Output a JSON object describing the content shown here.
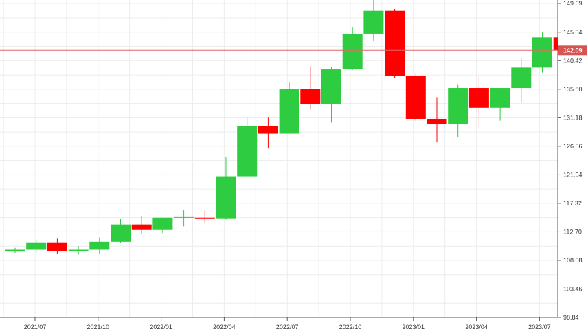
{
  "chart_data": {
    "type": "candlestick",
    "title": "",
    "xlabel": "",
    "ylabel": "",
    "ylim": [
      98.84,
      151.2
    ],
    "y_ticks": [
      "149.69",
      "145.04",
      "140.42",
      "135.80",
      "131.18",
      "126.56",
      "121.94",
      "117.32",
      "112.70",
      "108.08",
      "103.46",
      "98.84"
    ],
    "x_ticks": [
      "2021/07",
      "2021/10",
      "2022/01",
      "2022/04",
      "2022/07",
      "2022/10",
      "2023/01",
      "2023/04",
      "2023/07"
    ],
    "grid": true,
    "current_price": "142.09",
    "colors": {
      "up": "#2ECC40",
      "down": "#FF0000",
      "price_line": "#E06666",
      "price_label_bg": "#D9534F",
      "grid": "#ececec"
    },
    "candles": [
      {
        "open": 109.5,
        "high": 110.1,
        "low": 109.3,
        "close": 109.8
      },
      {
        "open": 109.8,
        "high": 111.3,
        "low": 109.3,
        "close": 111.0
      },
      {
        "open": 111.0,
        "high": 111.6,
        "low": 109.1,
        "close": 109.6
      },
      {
        "open": 109.6,
        "high": 110.4,
        "low": 109.0,
        "close": 109.8
      },
      {
        "open": 109.8,
        "high": 111.8,
        "low": 109.2,
        "close": 111.1
      },
      {
        "open": 111.1,
        "high": 114.8,
        "low": 110.9,
        "close": 113.9
      },
      {
        "open": 113.9,
        "high": 115.3,
        "low": 112.3,
        "close": 113.0
      },
      {
        "open": 113.0,
        "high": 115.0,
        "low": 112.5,
        "close": 115.0
      },
      {
        "open": 115.0,
        "high": 116.3,
        "low": 113.6,
        "close": 115.1
      },
      {
        "open": 115.0,
        "high": 116.3,
        "low": 114.1,
        "close": 114.9
      },
      {
        "open": 114.9,
        "high": 124.8,
        "low": 114.7,
        "close": 121.7
      },
      {
        "open": 121.7,
        "high": 131.3,
        "low": 121.7,
        "close": 129.8
      },
      {
        "open": 129.8,
        "high": 131.2,
        "low": 126.2,
        "close": 128.6
      },
      {
        "open": 128.6,
        "high": 137.0,
        "low": 128.6,
        "close": 135.8
      },
      {
        "open": 135.8,
        "high": 139.5,
        "low": 132.5,
        "close": 133.4
      },
      {
        "open": 133.4,
        "high": 139.4,
        "low": 130.4,
        "close": 139.0
      },
      {
        "open": 139.0,
        "high": 145.9,
        "low": 138.9,
        "close": 144.8
      },
      {
        "open": 144.8,
        "high": 151.2,
        "low": 143.6,
        "close": 148.5
      },
      {
        "open": 148.5,
        "high": 148.8,
        "low": 137.6,
        "close": 138.0
      },
      {
        "open": 138.0,
        "high": 138.2,
        "low": 130.7,
        "close": 131.0
      },
      {
        "open": 131.0,
        "high": 134.5,
        "low": 127.2,
        "close": 130.2
      },
      {
        "open": 130.2,
        "high": 136.6,
        "low": 128.0,
        "close": 136.0
      },
      {
        "open": 136.0,
        "high": 137.9,
        "low": 129.5,
        "close": 132.8
      },
      {
        "open": 132.8,
        "high": 136.0,
        "low": 130.7,
        "close": 136.0
      },
      {
        "open": 136.0,
        "high": 140.9,
        "low": 133.6,
        "close": 139.3
      },
      {
        "open": 139.3,
        "high": 145.0,
        "low": 138.5,
        "close": 144.2
      },
      {
        "open": 144.2,
        "high": 145.0,
        "low": 141.9,
        "close": 142.1
      }
    ]
  }
}
